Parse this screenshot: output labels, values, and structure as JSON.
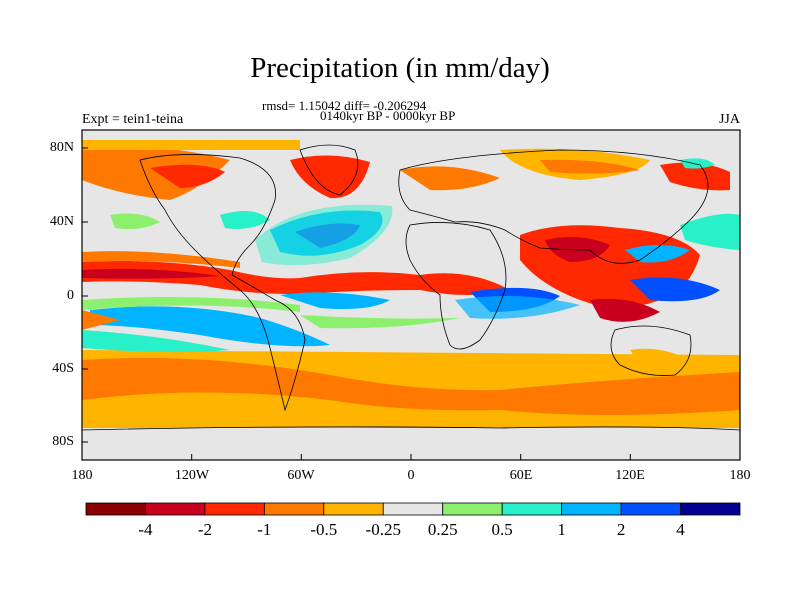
{
  "title": "Precipitation (in mm/day)",
  "stats_line": "rmsd= 1.15042 diff= -0.206294",
  "period_line": "0140kyr BP - 0000kyr BP",
  "experiment": "Expt = tein1-teina",
  "season": "JJA",
  "axes": {
    "x_ticks": [
      "180",
      "120W",
      "60W",
      "0",
      "60E",
      "120E",
      "180"
    ],
    "y_ticks": [
      "80N",
      "40N",
      "0",
      "40S",
      "80S"
    ]
  },
  "colorbar": {
    "labels": [
      "-4",
      "-2",
      "-1",
      "-0.5",
      "-0.25",
      "0.25",
      "0.5",
      "1",
      "2",
      "4"
    ],
    "colors": [
      "#8b0000",
      "#c8001e",
      "#ff2800",
      "#ff7800",
      "#ffb400",
      "#e6e6e6",
      "#8cf06e",
      "#28f0c8",
      "#00b4ff",
      "#0050ff",
      "#000090"
    ]
  },
  "chart_data": {
    "type": "heatmap",
    "title": "Precipitation (in mm/day)",
    "xlabel": "",
    "ylabel": "",
    "xlim": [
      -180,
      180
    ],
    "ylim": [
      -90,
      90
    ],
    "legend": "bottom",
    "bins": [
      -4,
      -2,
      -1,
      -0.5,
      -0.25,
      0.25,
      0.5,
      1,
      2,
      4
    ]
  }
}
